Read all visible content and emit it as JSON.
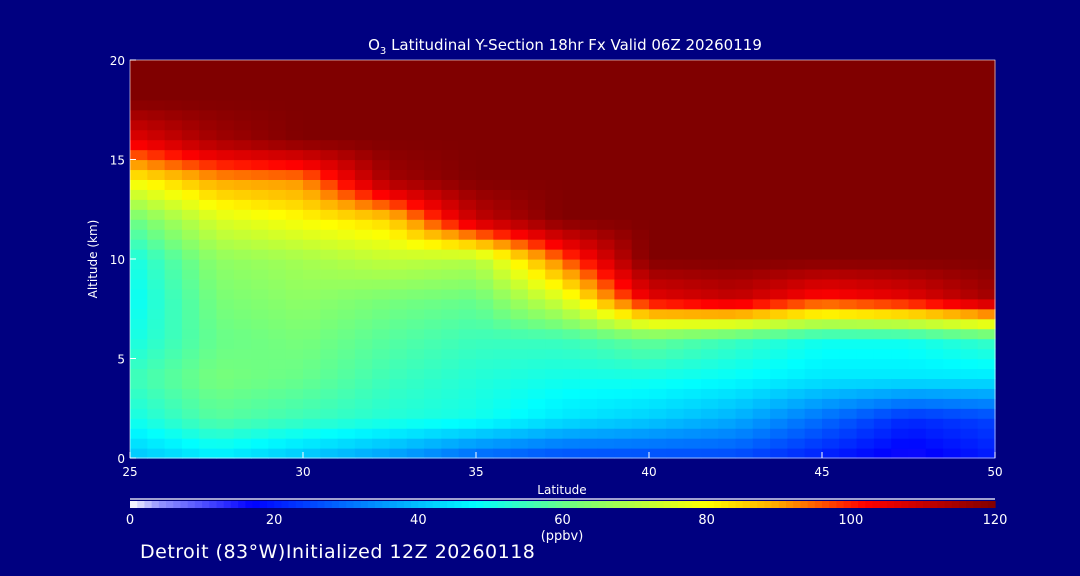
{
  "chart_data": {
    "type": "heatmap",
    "title": "O3 Latitudinal Y-Section 18hr  Fx Valid 06Z 20260119",
    "title_parts": {
      "pre": "O",
      "sub": "3",
      "post": " Latitudinal Y-Section 18hr  Fx Valid 06Z 20260119"
    },
    "xlabel": "Latitude",
    "ylabel": "Altitude (km)",
    "xlim": [
      25,
      50
    ],
    "ylim": [
      0,
      20
    ],
    "xticks": [
      "25",
      "30",
      "35",
      "40",
      "45",
      "50"
    ],
    "yticks": [
      "0",
      "5",
      "10",
      "15",
      "20"
    ],
    "x": [
      25,
      27.5,
      30,
      32.5,
      35,
      37.5,
      40,
      42.5,
      45,
      47.5,
      50
    ],
    "y": [
      0,
      2,
      4,
      6,
      8,
      10,
      12,
      14,
      16,
      18,
      20
    ],
    "z": [
      [
        40,
        45,
        40,
        35,
        28,
        25,
        25,
        25,
        20,
        15,
        20
      ],
      [
        50,
        58,
        55,
        52,
        50,
        45,
        42,
        38,
        30,
        22,
        25
      ],
      [
        55,
        62,
        60,
        55,
        52,
        50,
        50,
        48,
        45,
        45,
        45
      ],
      [
        50,
        60,
        62,
        58,
        55,
        55,
        60,
        55,
        50,
        50,
        55
      ],
      [
        48,
        62,
        65,
        62,
        60,
        75,
        105,
        110,
        100,
        105,
        115
      ],
      [
        50,
        65,
        68,
        72,
        70,
        95,
        120,
        120,
        120,
        120,
        120
      ],
      [
        60,
        75,
        80,
        85,
        110,
        120,
        120,
        120,
        120,
        120,
        120
      ],
      [
        80,
        90,
        92,
        115,
        120,
        120,
        120,
        120,
        120,
        120,
        120
      ],
      [
        105,
        115,
        120,
        120,
        120,
        120,
        120,
        120,
        120,
        120,
        120
      ],
      [
        120,
        120,
        120,
        120,
        120,
        120,
        120,
        120,
        120,
        120,
        120
      ],
      [
        120,
        120,
        120,
        120,
        120,
        120,
        120,
        120,
        120,
        120,
        120
      ]
    ],
    "colorbar": {
      "range": [
        0,
        120
      ],
      "ticks": [
        "0",
        "20",
        "40",
        "60",
        "80",
        "100",
        "120"
      ],
      "units": "(ppbv)"
    },
    "grid": false
  },
  "footer": "Detroit (83°W)Initialized 12Z 20260118",
  "colors": {
    "background": "#000080",
    "foreground": "#ffffff"
  }
}
